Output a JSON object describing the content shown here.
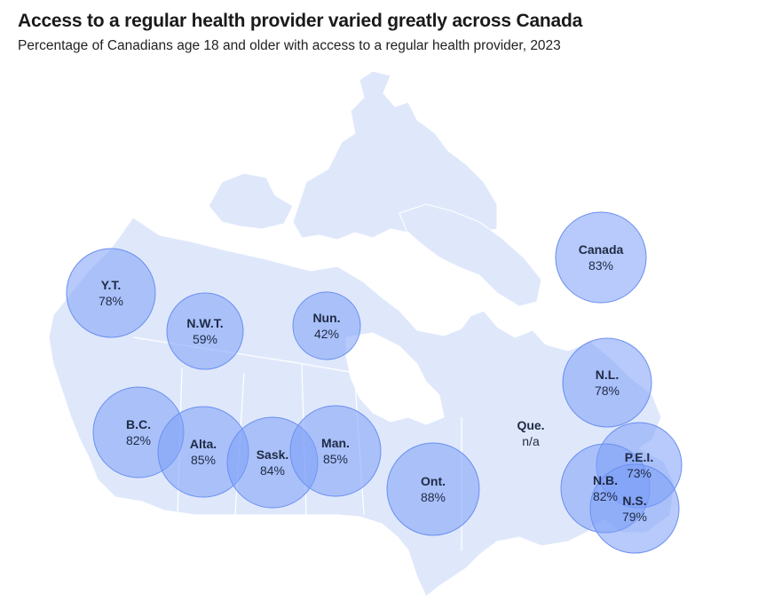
{
  "title": "Access to a regular health provider varied greatly across Canada",
  "subtitle": "Percentage of Canadians age 18 and older with access to a regular health provider, 2023",
  "colors": {
    "land": "#dfe8fb",
    "land_stroke": "#ffffff",
    "bubble_fill": "#7b9ef7",
    "bubble_stroke": "#6b8ff0",
    "label": "#1f2a44"
  },
  "regions": [
    {
      "id": "yt",
      "name": "Y.T.",
      "value_label": "78%",
      "value": 78
    },
    {
      "id": "nwt",
      "name": "N.W.T.",
      "value_label": "59%",
      "value": 59
    },
    {
      "id": "nun",
      "name": "Nun.",
      "value_label": "42%",
      "value": 42
    },
    {
      "id": "bc",
      "name": "B.C.",
      "value_label": "82%",
      "value": 82
    },
    {
      "id": "alta",
      "name": "Alta.",
      "value_label": "85%",
      "value": 85
    },
    {
      "id": "sask",
      "name": "Sask.",
      "value_label": "84%",
      "value": 84
    },
    {
      "id": "man",
      "name": "Man.",
      "value_label": "85%",
      "value": 85
    },
    {
      "id": "ont",
      "name": "Ont.",
      "value_label": "88%",
      "value": 88
    },
    {
      "id": "que",
      "name": "Que.",
      "value_label": "n/a",
      "value": null
    },
    {
      "id": "nl",
      "name": "N.L.",
      "value_label": "78%",
      "value": 78
    },
    {
      "id": "pei",
      "name": "P.E.I.",
      "value_label": "73%",
      "value": 73
    },
    {
      "id": "nb",
      "name": "N.B.",
      "value_label": "82%",
      "value": 82
    },
    {
      "id": "ns",
      "name": "N.S.",
      "value_label": "79%",
      "value": 79
    },
    {
      "id": "canada",
      "name": "Canada",
      "value_label": "83%",
      "value": 83
    }
  ]
}
